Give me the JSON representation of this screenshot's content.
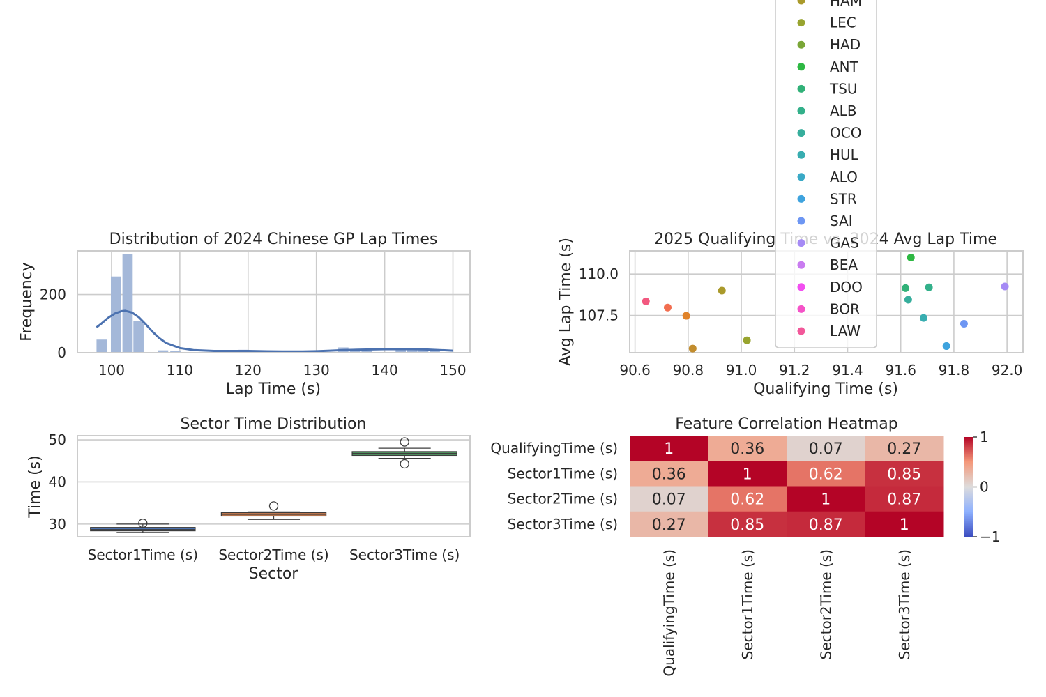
{
  "chart_data": [
    {
      "type": "histogram",
      "title": "Distribution of 2024 Chinese GP Lap Times",
      "xlabel": "Lap Time (s)",
      "ylabel": "Frequency",
      "xlim": [
        95,
        152.5
      ],
      "ylim": [
        0,
        350
      ],
      "xticks": [
        100,
        110,
        120,
        130,
        140,
        150
      ],
      "yticks": [
        0,
        200
      ],
      "bins": [
        {
          "x0": 97.8,
          "x1": 99.3,
          "count": 45
        },
        {
          "x0": 99.9,
          "x1": 101.4,
          "count": 262
        },
        {
          "x0": 101.6,
          "x1": 103.1,
          "count": 340
        },
        {
          "x0": 103.2,
          "x1": 104.7,
          "count": 110
        },
        {
          "x0": 106.8,
          "x1": 108.3,
          "count": 8
        },
        {
          "x0": 108.6,
          "x1": 110.1,
          "count": 6
        },
        {
          "x0": 118.6,
          "x1": 120.1,
          "count": 10
        },
        {
          "x0": 120.2,
          "x1": 121.7,
          "count": 3
        },
        {
          "x0": 126.8,
          "x1": 128.3,
          "count": 2
        },
        {
          "x0": 133.2,
          "x1": 134.7,
          "count": 18
        },
        {
          "x0": 134.9,
          "x1": 136.4,
          "count": 10
        },
        {
          "x0": 136.6,
          "x1": 138.1,
          "count": 8
        },
        {
          "x0": 141.6,
          "x1": 143.1,
          "count": 12
        },
        {
          "x0": 143.3,
          "x1": 144.8,
          "count": 9
        },
        {
          "x0": 144.9,
          "x1": 146.4,
          "count": 15
        },
        {
          "x0": 146.6,
          "x1": 148.1,
          "count": 8
        }
      ],
      "kde": {
        "x": [
          97.8,
          98.5,
          99.5,
          100.5,
          101.5,
          102.0,
          103.0,
          104.0,
          105.0,
          106.0,
          107.0,
          108.0,
          110.0,
          112.0,
          115.0,
          118.0,
          120.0,
          122.0,
          125.0,
          128.0,
          130.0,
          132.0,
          134.0,
          136.0,
          138.0,
          140.0,
          142.0,
          144.0,
          146.0,
          148.0,
          150.0
        ],
        "y": [
          87,
          100,
          120,
          135,
          143,
          144,
          138,
          122,
          98,
          72,
          50,
          33,
          16,
          9,
          6,
          6,
          6,
          5,
          4,
          4,
          5,
          7,
          9,
          10,
          11,
          12,
          12,
          12,
          11,
          9,
          7
        ]
      },
      "color": "#4c72b0"
    },
    {
      "type": "scatter",
      "title": "2025 Qualifying Time vs. 2024 Avg Lap Time",
      "xlabel": "Qualifying Time (s)",
      "ylabel": "Avg Lap Time (s)",
      "xlim": [
        90.58,
        92.06
      ],
      "ylim": [
        105.25,
        111.4
      ],
      "xticks": [
        90.6,
        90.8,
        91.0,
        91.2,
        91.4,
        91.6,
        91.8,
        92.0
      ],
      "yticks": [
        107.5,
        110.0
      ],
      "legend_position": "upper center, overflowing above the axes",
      "points": [
        {
          "driver": "LAW",
          "x": 90.641,
          "y": 108.35,
          "color": "#f2587f"
        },
        {
          "driver": "?",
          "x": 90.723,
          "y": 107.98,
          "color": "#f26e50"
        },
        {
          "driver": "?",
          "x": 90.793,
          "y": 107.48,
          "color": "#e0832a"
        },
        {
          "driver": "?",
          "x": 90.817,
          "y": 105.5,
          "color": "#c28d2e"
        },
        {
          "driver": "HAM",
          "x": 90.927,
          "y": 109.0,
          "color": "#aa9a2b"
        },
        {
          "driver": "LEC",
          "x": 91.021,
          "y": 106.0,
          "color": "#98a42f"
        },
        {
          "driver": "ANT",
          "x": 91.638,
          "y": 111.0,
          "color": "#2eb843"
        },
        {
          "driver": "TSU",
          "x": 91.618,
          "y": 109.15,
          "color": "#31b178"
        },
        {
          "driver": "ALB",
          "x": 91.706,
          "y": 109.2,
          "color": "#33b08a"
        },
        {
          "driver": "OCO",
          "x": 91.628,
          "y": 108.45,
          "color": "#36ae9c"
        },
        {
          "driver": "HUL",
          "x": 91.686,
          "y": 107.35,
          "color": "#38adb0"
        },
        {
          "driver": "ALO",
          "x": 91.772,
          "y": 105.65,
          "color": "#3aa9c6"
        },
        {
          "driver": "STR",
          "x": 91.772,
          "y": 105.65,
          "color": "#3ea3de"
        },
        {
          "driver": "SAI",
          "x": 91.838,
          "y": 107.0,
          "color": "#6d96f3"
        },
        {
          "driver": "GAS",
          "x": 91.992,
          "y": 109.25,
          "color": "#a58af5"
        }
      ],
      "legend": [
        {
          "label": "HAM",
          "color": "#aa9a2b"
        },
        {
          "label": "LEC",
          "color": "#98a42f"
        },
        {
          "label": "HAD",
          "color": "#7aa637"
        },
        {
          "label": "ANT",
          "color": "#2eb843"
        },
        {
          "label": "TSU",
          "color": "#31b178"
        },
        {
          "label": "ALB",
          "color": "#33b08a"
        },
        {
          "label": "OCO",
          "color": "#36ae9c"
        },
        {
          "label": "HUL",
          "color": "#38adb0"
        },
        {
          "label": "ALO",
          "color": "#3aa9c6"
        },
        {
          "label": "STR",
          "color": "#3ea3de"
        },
        {
          "label": "SAI",
          "color": "#6d96f3"
        },
        {
          "label": "GAS",
          "color": "#a58af5"
        },
        {
          "label": "BEA",
          "color": "#c97cf0"
        },
        {
          "label": "DOO",
          "color": "#f24ff0"
        },
        {
          "label": "BOR",
          "color": "#f553c8"
        },
        {
          "label": "LAW",
          "color": "#f2589a"
        }
      ]
    },
    {
      "type": "box",
      "title": "Sector Time Distribution",
      "xlabel": "Sector",
      "ylabel": "Time (s)",
      "ylim": [
        27,
        51
      ],
      "yticks": [
        30,
        40,
        50
      ],
      "categories": [
        "Sector1Time (s)",
        "Sector2Time (s)",
        "Sector3Time (s)"
      ],
      "boxes": [
        {
          "whisker_low": 28.0,
          "q1": 28.4,
          "median": 28.7,
          "q3": 29.2,
          "whisker_high": 30.0,
          "outliers": [
            30.2
          ],
          "color": "#4c72b0"
        },
        {
          "whisker_low": 31.1,
          "q1": 31.9,
          "median": 32.3,
          "q3": 32.7,
          "whisker_high": 32.9,
          "outliers": [
            34.3
          ],
          "color": "#dd8452"
        },
        {
          "whisker_low": 45.6,
          "q1": 46.3,
          "median": 46.8,
          "q3": 47.2,
          "whisker_high": 48.0,
          "outliers": [
            44.3,
            49.5
          ],
          "color": "#55a868"
        }
      ]
    },
    {
      "type": "heatmap",
      "title": "Feature Correlation Heatmap",
      "labels": [
        "QualifyingTime (s)",
        "Sector1Time (s)",
        "Sector2Time (s)",
        "Sector3Time (s)"
      ],
      "matrix": [
        [
          1,
          0.36,
          0.07,
          0.27
        ],
        [
          0.36,
          1,
          0.62,
          0.85
        ],
        [
          0.07,
          0.62,
          1,
          0.87
        ],
        [
          0.27,
          0.85,
          0.87,
          1
        ]
      ],
      "vmin": -1,
      "vmax": 1,
      "colormap": "coolwarm",
      "colorbar_ticks": [
        1,
        0,
        -1
      ],
      "colorbar_tick_labels": [
        "1",
        "0",
        "−1"
      ]
    }
  ]
}
